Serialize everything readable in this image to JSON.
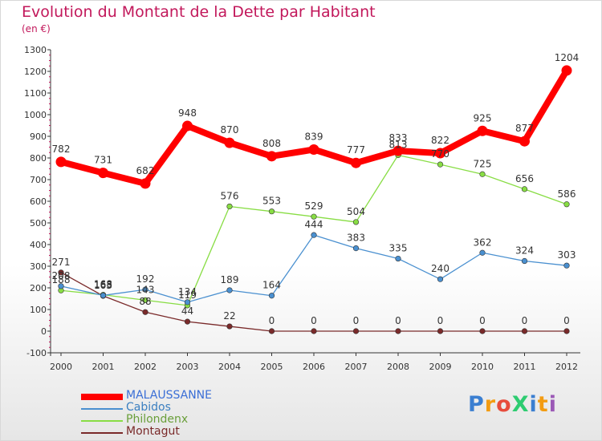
{
  "title": "Evolution du Montant de la Dette par Habitant",
  "subtitle": "(en €)",
  "logo": {
    "text": "ProXiti",
    "colors": [
      "#3b7fd1",
      "#f39c12",
      "#e74c3c",
      "#2ecc71",
      "#3b7fd1",
      "#f39c12",
      "#9b59b6"
    ]
  },
  "chart_data": {
    "type": "line",
    "x": [
      "2000",
      "2001",
      "2002",
      "2003",
      "2004",
      "2005",
      "2006",
      "2007",
      "2008",
      "2009",
      "2010",
      "2011",
      "2012"
    ],
    "ylim": [
      -100,
      1300
    ],
    "yticks": [
      -100,
      0,
      100,
      200,
      300,
      400,
      500,
      600,
      700,
      800,
      900,
      1000,
      1100,
      1200,
      1300
    ],
    "grid": false,
    "legend_placement": "bottom-left",
    "series": [
      {
        "name": "MALAUSSANNE",
        "color": "#ff0000",
        "values": [
          782,
          731,
          682,
          948,
          870,
          808,
          839,
          777,
          833,
          822,
          925,
          877,
          1204
        ]
      },
      {
        "name": "Cabidos",
        "color": "#4a90d0",
        "values": [
          208,
          165,
          192,
          134,
          189,
          164,
          444,
          383,
          335,
          240,
          362,
          324,
          303
        ]
      },
      {
        "name": "Philondenx",
        "color": "#88dd44",
        "values": [
          188,
          168,
          143,
          119,
          576,
          553,
          529,
          504,
          813,
          770,
          725,
          656,
          586
        ]
      },
      {
        "name": "Montagut",
        "color": "#7a2a2a",
        "values": [
          271,
          163,
          88,
          44,
          22,
          0,
          0,
          0,
          0,
          0,
          0,
          0,
          0
        ]
      }
    ]
  }
}
